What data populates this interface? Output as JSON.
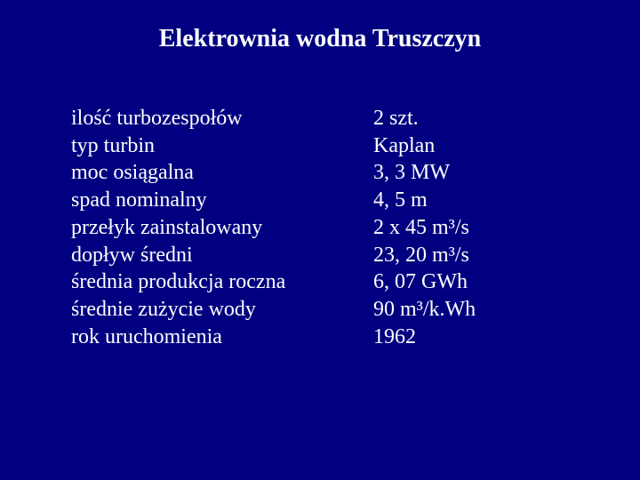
{
  "background_color": "#000080",
  "text_color": "#ffffff",
  "title": "Elektrownia wodna Truszczyn",
  "title_fontsize": 28,
  "body_fontsize": 24,
  "font_family": "Times New Roman",
  "specs": {
    "labels": [
      "ilość turbozespołów",
      "typ turbin",
      "moc osiągalna",
      "spad nominalny",
      "przełyk zainstalowany",
      "dopływ średni",
      "średnia produkcja roczna",
      "średnie zużycie wody",
      "rok uruchomienia"
    ],
    "values": [
      "2 szt.",
      "Kaplan",
      "3, 3 MW",
      "4, 5 m",
      "2 x 45 m³/s",
      "23, 20 m³/s",
      "6, 07 GWh",
      "90 m³/k.Wh",
      "1962"
    ]
  }
}
